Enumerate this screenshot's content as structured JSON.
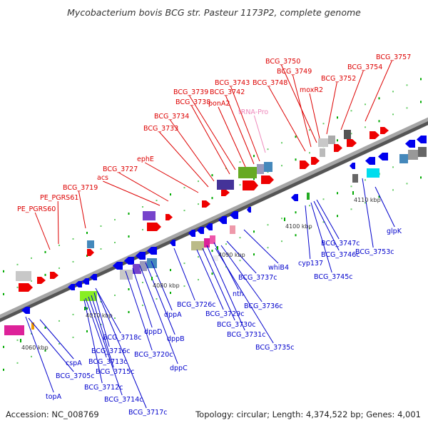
{
  "title": "Mycobacterium bovis BCG str. Pasteur 1173P2, complete genome",
  "footer": {
    "accession": "Accession: NC_008769",
    "summary": "Topology: circular; Length: 4,374,522 bp; Genes: 4,001"
  },
  "colors": {
    "forward_label": "#dd0000",
    "reverse_label": "#0000cc",
    "trna_label": "#ee88bb",
    "forward_gene": "#ee0000",
    "reverse_gene": "#0000ee",
    "backbone": "#888888"
  },
  "position_markers": [
    "4060 kbp",
    "4070 kbp",
    "4080 kbp",
    "4090 kbp",
    "4100 kbp",
    "4110 kbp"
  ],
  "forward_labels": [
    "PE_PGRS60",
    "PE_PGRS61",
    "BCG_3719",
    "acs",
    "BCG_3727",
    "ephE",
    "BCG_3733",
    "BCG_3734",
    "BCG_3738",
    "BCG_3739",
    "ponA2",
    "BCG_3742",
    "BCG_3743",
    "tRNA-Pro",
    "BCG_3748",
    "BCG_3749",
    "BCG_3750",
    "moxR2",
    "BCG_3752",
    "BCG_3754",
    "BCG_3757"
  ],
  "reverse_labels": [
    "topA",
    "BCG_3705c",
    "cspA",
    "BCG_3712c",
    "BCG_3713c",
    "BCG_3714c",
    "BCG_3715c",
    "BCG_3716c",
    "BCG_3717c",
    "BCG_3718c",
    "BCG_3720c",
    "dppD",
    "dppC",
    "dppB",
    "dppA",
    "BCG_3726c",
    "BCG_3729c",
    "BCG_3730c",
    "BCG_3731c",
    "nth",
    "BCG_3735c",
    "BCG_3736c",
    "BCG_3737c",
    "whiB4",
    "cyp137",
    "BCG_3745c",
    "BCG_3746c",
    "BCG_3747c",
    "BCG_3753c",
    "glpK"
  ]
}
